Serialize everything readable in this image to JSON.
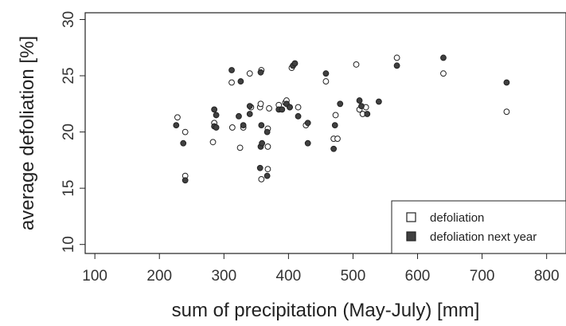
{
  "chart_data": {
    "type": "scatter",
    "title": "",
    "xlabel": "sum of precipitation (May-July) [mm]",
    "ylabel": "average defoliation [%]",
    "xlim": [
      85,
      830
    ],
    "ylim": [
      9.2,
      30.6
    ],
    "xticks": [
      100,
      200,
      300,
      400,
      500,
      600,
      700,
      800
    ],
    "yticks": [
      10,
      15,
      20,
      25,
      30
    ],
    "grid": false,
    "legend_position": "bottom-right",
    "series": [
      {
        "name": "defoliation",
        "marker": "open-circle",
        "color": "#ffffff",
        "points": [
          [
            228,
            21.3
          ],
          [
            240,
            20.0
          ],
          [
            240,
            16.1
          ],
          [
            283,
            19.1
          ],
          [
            285,
            20.8
          ],
          [
            312,
            24.4
          ],
          [
            313,
            20.4
          ],
          [
            325,
            18.6
          ],
          [
            330,
            20.4
          ],
          [
            340,
            25.2
          ],
          [
            342,
            22.2
          ],
          [
            356,
            22.2
          ],
          [
            357,
            22.5
          ],
          [
            358,
            25.5
          ],
          [
            358,
            15.8
          ],
          [
            368,
            16.7
          ],
          [
            368,
            18.7
          ],
          [
            368,
            20.3
          ],
          [
            370,
            22.1
          ],
          [
            385,
            22.4
          ],
          [
            395,
            22.6
          ],
          [
            397,
            22.8
          ],
          [
            402,
            22.2
          ],
          [
            405,
            25.7
          ],
          [
            415,
            22.2
          ],
          [
            427,
            20.6
          ],
          [
            458,
            24.5
          ],
          [
            470,
            19.4
          ],
          [
            473,
            21.5
          ],
          [
            476,
            19.4
          ],
          [
            505,
            26.0
          ],
          [
            510,
            22.0
          ],
          [
            515,
            21.6
          ],
          [
            520,
            22.2
          ],
          [
            568,
            26.6
          ],
          [
            640,
            25.2
          ],
          [
            738,
            21.8
          ]
        ]
      },
      {
        "name": "defoliation next year",
        "marker": "filled-circle",
        "color": "#404040",
        "points": [
          [
            226,
            20.6
          ],
          [
            237,
            19.0
          ],
          [
            240,
            15.7
          ],
          [
            285,
            22.0
          ],
          [
            285,
            20.5
          ],
          [
            288,
            20.4
          ],
          [
            288,
            21.5
          ],
          [
            312,
            25.5
          ],
          [
            323,
            21.4
          ],
          [
            326,
            24.5
          ],
          [
            330,
            20.6
          ],
          [
            340,
            21.6
          ],
          [
            340,
            22.3
          ],
          [
            356,
            16.8
          ],
          [
            357,
            25.3
          ],
          [
            357,
            18.7
          ],
          [
            358,
            20.6
          ],
          [
            359,
            19.0
          ],
          [
            367,
            16.1
          ],
          [
            367,
            20.0
          ],
          [
            385,
            22.0
          ],
          [
            390,
            22.0
          ],
          [
            397,
            22.5
          ],
          [
            402,
            22.2
          ],
          [
            407,
            25.9
          ],
          [
            410,
            26.1
          ],
          [
            415,
            21.4
          ],
          [
            430,
            19.0
          ],
          [
            430,
            20.8
          ],
          [
            458,
            25.2
          ],
          [
            470,
            18.5
          ],
          [
            472,
            20.6
          ],
          [
            480,
            22.5
          ],
          [
            510,
            22.8
          ],
          [
            513,
            22.3
          ],
          [
            522,
            21.6
          ],
          [
            540,
            22.7
          ],
          [
            568,
            25.9
          ],
          [
            640,
            26.6
          ],
          [
            738,
            24.4
          ]
        ]
      }
    ]
  }
}
